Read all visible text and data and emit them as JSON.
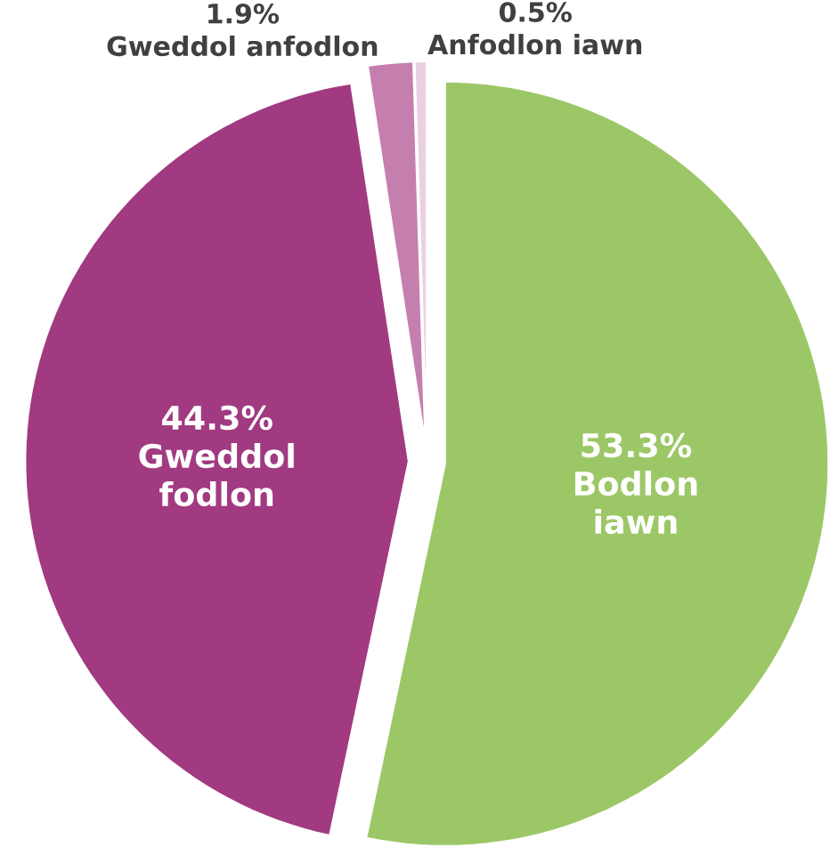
{
  "chart_data": {
    "type": "pie",
    "categories": [
      "Bodlon iawn",
      "Gweddol fodlon",
      "Gweddol anfodlon",
      "Anfodlon iawn"
    ],
    "values": [
      53.3,
      44.3,
      1.9,
      0.5
    ],
    "value_labels": [
      "53.3%",
      "44.3%",
      "1.9%",
      "0.5%"
    ],
    "colors": [
      "#9cc766",
      "#a13a80",
      "#c57fae",
      "#ead0e0"
    ]
  }
}
